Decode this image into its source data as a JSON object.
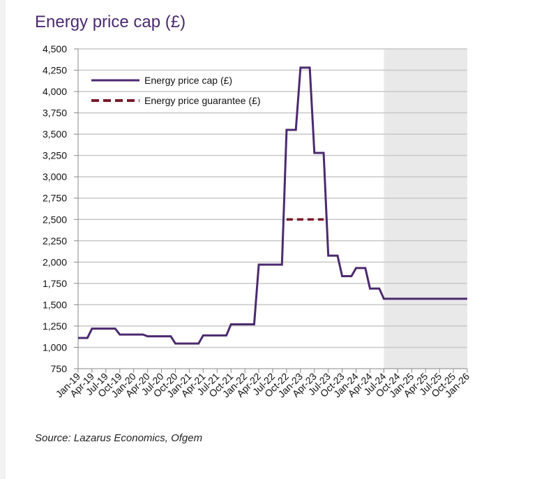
{
  "title": "Energy price cap (£)",
  "source": "Source: Lazarus Economics, Ofgem",
  "colors": {
    "cap_line": "#4b2a6e",
    "guarantee_line": "#7a1a2a",
    "grid": "#c8c8c8",
    "forecast_shade": "#e9e9e9",
    "axis": "#888888"
  },
  "chart_data": {
    "type": "line",
    "title": "Energy price cap (£)",
    "xlabel": "",
    "ylabel": "",
    "ylim": [
      750,
      4500
    ],
    "yticks": [
      750,
      1000,
      1250,
      1500,
      1750,
      2000,
      2250,
      2500,
      2750,
      3000,
      3250,
      3500,
      3750,
      4000,
      4250,
      4500
    ],
    "ytick_labels": [
      "750",
      "1,000",
      "1,250",
      "1,500",
      "1,750",
      "2,000",
      "2,250",
      "2,500",
      "2,750",
      "3,000",
      "3,250",
      "3,500",
      "3,750",
      "4,000",
      "4,250",
      "4,500"
    ],
    "grid": true,
    "legend_position": "top-left",
    "x_start": "Jan-19",
    "x_end": "Jan-26",
    "xtick_labels": [
      "Jan-19",
      "Apr-19",
      "Jul-19",
      "Oct-19",
      "Jan-20",
      "Apr-20",
      "Jul-20",
      "Oct-20",
      "Jan-21",
      "Apr-21",
      "Jul-21",
      "Oct-21",
      "Jan-22",
      "Apr-22",
      "Jul-22",
      "Oct-22",
      "Jan-23",
      "Apr-23",
      "Jul-23",
      "Oct-23",
      "Jan-24",
      "Apr-24",
      "Jul-24",
      "Oct-24",
      "Jan-25",
      "Apr-25",
      "Jul-25",
      "Oct-25",
      "Jan-26"
    ],
    "shaded_region": {
      "from": "Jul-24",
      "to": "Jan-26"
    },
    "series": [
      {
        "name": "Energy price cap (£)",
        "style": "solid",
        "points": [
          {
            "x": "Jan-19",
            "y": 1110
          },
          {
            "x": "Mar-19",
            "y": 1110
          },
          {
            "x": "Apr-19",
            "y": 1220
          },
          {
            "x": "Sep-19",
            "y": 1220
          },
          {
            "x": "Oct-19",
            "y": 1150
          },
          {
            "x": "Mar-20",
            "y": 1150
          },
          {
            "x": "Apr-20",
            "y": 1130
          },
          {
            "x": "Sep-20",
            "y": 1130
          },
          {
            "x": "Oct-20",
            "y": 1045
          },
          {
            "x": "Mar-21",
            "y": 1045
          },
          {
            "x": "Apr-21",
            "y": 1140
          },
          {
            "x": "Sep-21",
            "y": 1140
          },
          {
            "x": "Oct-21",
            "y": 1270
          },
          {
            "x": "Mar-22",
            "y": 1270
          },
          {
            "x": "Apr-22",
            "y": 1970
          },
          {
            "x": "Sep-22",
            "y": 1970
          },
          {
            "x": "Oct-22",
            "y": 3550
          },
          {
            "x": "Dec-22",
            "y": 3550
          },
          {
            "x": "Jan-23",
            "y": 4280
          },
          {
            "x": "Mar-23",
            "y": 4280
          },
          {
            "x": "Apr-23",
            "y": 3280
          },
          {
            "x": "Jun-23",
            "y": 3280
          },
          {
            "x": "Jul-23",
            "y": 2075
          },
          {
            "x": "Sep-23",
            "y": 2075
          },
          {
            "x": "Oct-23",
            "y": 1835
          },
          {
            "x": "Dec-23",
            "y": 1835
          },
          {
            "x": "Jan-24",
            "y": 1930
          },
          {
            "x": "Mar-24",
            "y": 1930
          },
          {
            "x": "Apr-24",
            "y": 1690
          },
          {
            "x": "Jun-24",
            "y": 1690
          },
          {
            "x": "Jul-24",
            "y": 1570
          },
          {
            "x": "Jan-26",
            "y": 1570
          }
        ]
      },
      {
        "name": "Energy price guarantee (£)",
        "style": "dashed",
        "points": [
          {
            "x": "Oct-22",
            "y": 2500
          },
          {
            "x": "Jun-23",
            "y": 2500
          }
        ]
      }
    ]
  }
}
